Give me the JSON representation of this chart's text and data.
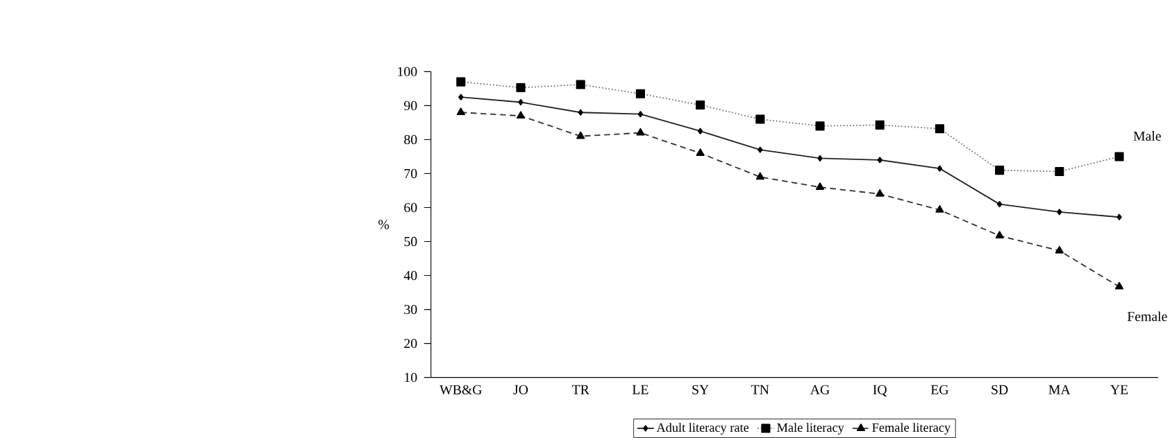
{
  "chart_data": {
    "type": "line",
    "ylabel": "%",
    "categories": [
      "WB&G",
      "JO",
      "TR",
      "LE",
      "SY",
      "TN",
      "AG",
      "IQ",
      "EG",
      "SD",
      "MA",
      "YE"
    ],
    "series": [
      {
        "name": "Adult literacy rate",
        "color": "#222222",
        "marker": "diamond",
        "line_style": "solid",
        "values": [
          92.5,
          91,
          88,
          87.5,
          82.5,
          77,
          74.5,
          74,
          71.5,
          61,
          58.7,
          57.2
        ]
      },
      {
        "name": "Male literacy",
        "color": "#777777",
        "marker": "square",
        "line_style": "dotted",
        "values": [
          97,
          95.3,
          96.2,
          93.5,
          90.2,
          86,
          84,
          84.3,
          83.2,
          71,
          70.6,
          75
        ]
      },
      {
        "name": "Female literacy",
        "color": "#333333",
        "marker": "triangle",
        "line_style": "dashed",
        "values": [
          88,
          87,
          81,
          82,
          76,
          69,
          66,
          64,
          59.3,
          51.7,
          47.3,
          36.7
        ]
      }
    ],
    "annotations": [
      "Male",
      "Female"
    ],
    "ylim": [
      10,
      100
    ],
    "yticks": [
      10,
      20,
      30,
      40,
      50,
      60,
      70,
      80,
      90,
      100
    ],
    "grid": false,
    "legend": "bottom"
  }
}
